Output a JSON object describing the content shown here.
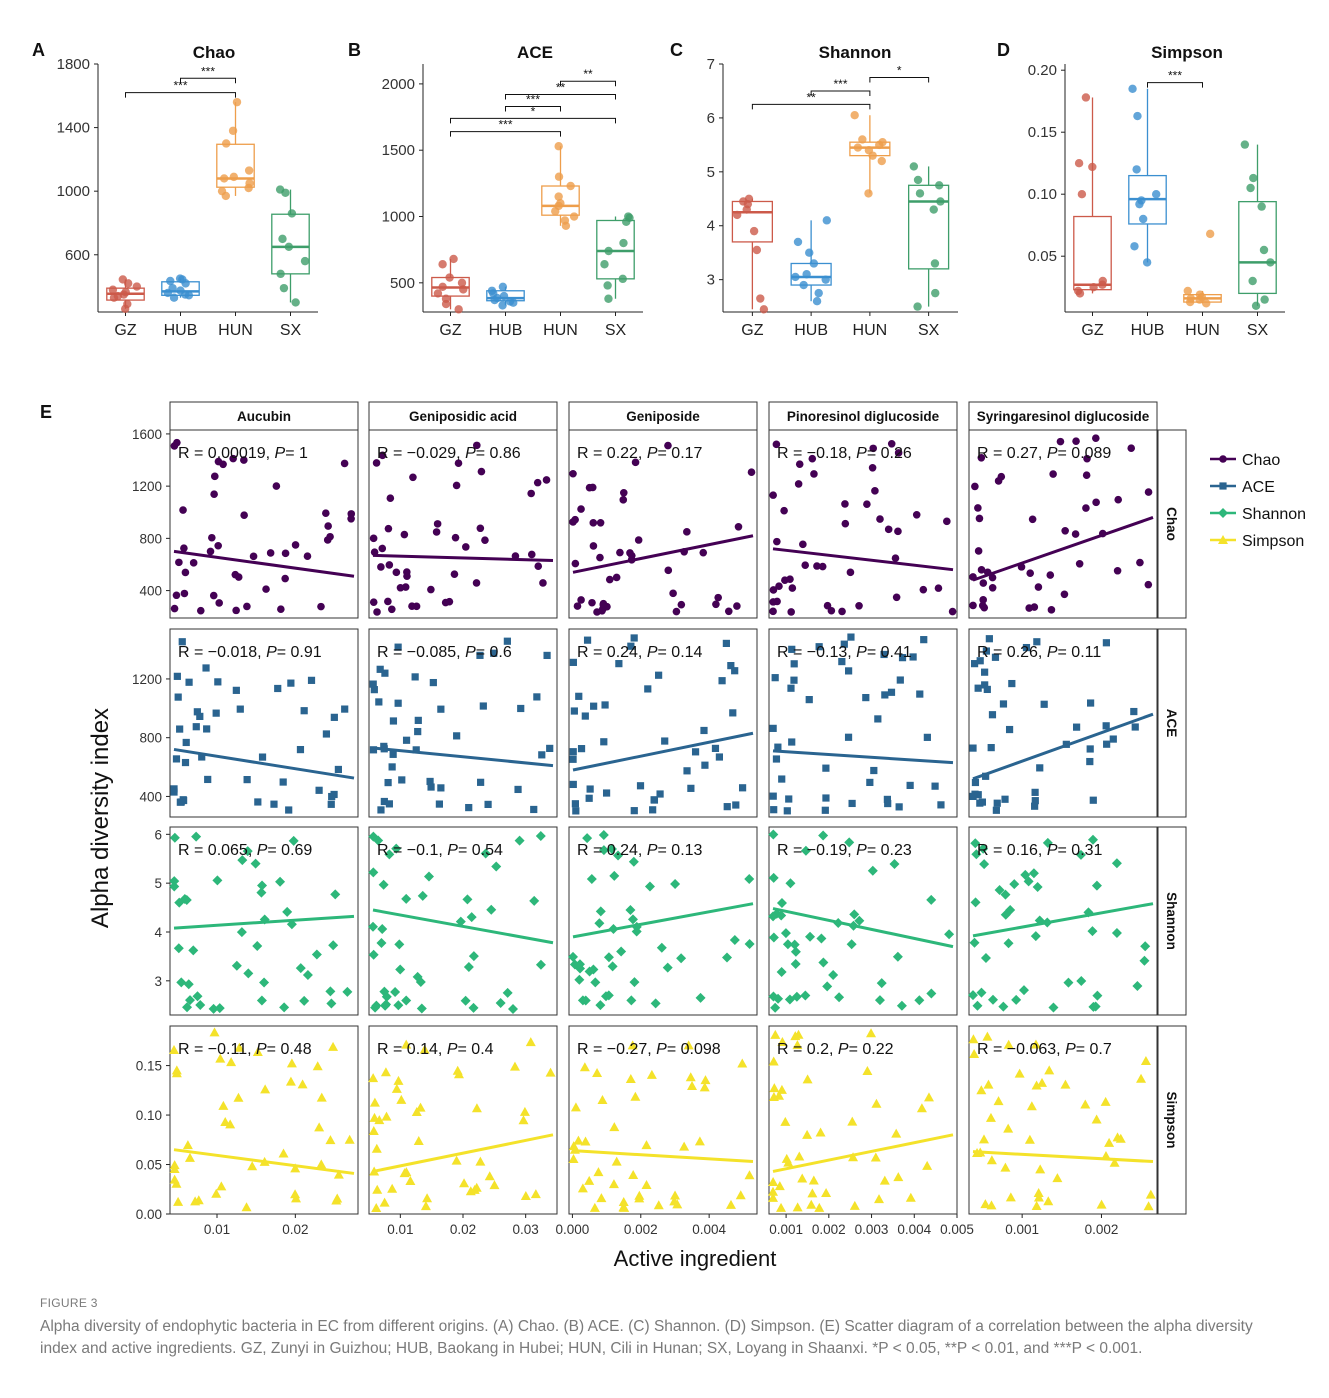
{
  "colors": {
    "GZ": "#CC5A4A",
    "HUB": "#3B8FD0",
    "HUN": "#EE9E4B",
    "SX": "#3E9E6A",
    "Chao": "#440154",
    "ACE": "#2A6490",
    "Shannon": "#2DB77A",
    "Simpson": "#F4E22A",
    "axis": "#222222",
    "caption": "#7a7a7a"
  },
  "chart_data": [
    {
      "panel": "A",
      "type": "box",
      "title": "Chao",
      "categories": [
        "GZ",
        "HUB",
        "HUN",
        "SX"
      ],
      "ylim": [
        240,
        1800
      ],
      "yticks": [
        600,
        1000,
        1400,
        1800
      ],
      "boxes": [
        {
          "min": 260,
          "q1": 315,
          "median": 355,
          "q3": 390,
          "max": 445
        },
        {
          "min": 330,
          "q1": 345,
          "median": 370,
          "q3": 430,
          "max": 450
        },
        {
          "min": 970,
          "q1": 1025,
          "median": 1080,
          "q3": 1295,
          "max": 1560
        },
        {
          "min": 300,
          "q1": 480,
          "median": 650,
          "q3": 855,
          "max": 1010
        }
      ],
      "points": [
        [
          260,
          290,
          330,
          340,
          350,
          365,
          380,
          400,
          420,
          445
        ],
        [
          330,
          345,
          350,
          360,
          375,
          390,
          420,
          435,
          445,
          450
        ],
        [
          970,
          1000,
          1020,
          1050,
          1080,
          1090,
          1130,
          1300,
          1380,
          1560
        ],
        [
          300,
          390,
          480,
          560,
          650,
          700,
          860,
          990,
          1010
        ]
      ],
      "brackets": [
        {
          "from": "GZ",
          "to": "HUN",
          "y": 1620,
          "label": "***"
        },
        {
          "from": "HUB",
          "to": "HUN",
          "y": 1710,
          "label": "***"
        }
      ]
    },
    {
      "panel": "B",
      "type": "box",
      "title": "ACE",
      "categories": [
        "GZ",
        "HUB",
        "HUN",
        "SX"
      ],
      "ylim": [
        280,
        2150
      ],
      "yticks": [
        500,
        1000,
        1500,
        2000
      ],
      "boxes": [
        {
          "min": 300,
          "q1": 400,
          "median": 465,
          "q3": 540,
          "max": 680
        },
        {
          "min": 330,
          "q1": 365,
          "median": 385,
          "q3": 440,
          "max": 470
        },
        {
          "min": 930,
          "q1": 1010,
          "median": 1080,
          "q3": 1230,
          "max": 1530
        },
        {
          "min": 380,
          "q1": 530,
          "median": 740,
          "q3": 970,
          "max": 1000
        }
      ],
      "points": [
        [
          300,
          340,
          380,
          420,
          450,
          470,
          500,
          540,
          640,
          680
        ],
        [
          330,
          350,
          360,
          370,
          385,
          400,
          420,
          440,
          470
        ],
        [
          930,
          970,
          1000,
          1040,
          1080,
          1100,
          1150,
          1230,
          1300,
          1530
        ],
        [
          380,
          480,
          530,
          640,
          740,
          800,
          960,
          990,
          1000
        ]
      ],
      "brackets": [
        {
          "from": "GZ",
          "to": "HUN",
          "y": 1640,
          "label": "***"
        },
        {
          "from": "GZ",
          "to": "SX",
          "y": 1740,
          "label": "*"
        },
        {
          "from": "HUB",
          "to": "HUN",
          "y": 1830,
          "label": "***"
        },
        {
          "from": "HUB",
          "to": "SX",
          "y": 1920,
          "label": "**"
        },
        {
          "from": "HUN",
          "to": "SX",
          "y": 2020,
          "label": "**"
        }
      ]
    },
    {
      "panel": "C",
      "type": "box",
      "title": "Shannon",
      "categories": [
        "GZ",
        "HUB",
        "HUN",
        "SX"
      ],
      "ylim": [
        2.4,
        7.0
      ],
      "yticks": [
        3,
        4,
        5,
        6,
        7
      ],
      "boxes": [
        {
          "min": 2.45,
          "q1": 3.7,
          "median": 4.25,
          "q3": 4.45,
          "max": 4.5
        },
        {
          "min": 2.6,
          "q1": 2.9,
          "median": 3.05,
          "q3": 3.3,
          "max": 4.1
        },
        {
          "min": 4.6,
          "q1": 5.3,
          "median": 5.45,
          "q3": 5.55,
          "max": 6.05
        },
        {
          "min": 2.5,
          "q1": 3.2,
          "median": 4.45,
          "q3": 4.75,
          "max": 5.1
        }
      ],
      "points": [
        [
          2.45,
          2.65,
          3.55,
          3.9,
          4.2,
          4.3,
          4.4,
          4.45,
          4.5
        ],
        [
          2.6,
          2.75,
          2.9,
          3.0,
          3.05,
          3.1,
          3.3,
          3.5,
          3.7,
          4.1
        ],
        [
          4.6,
          5.2,
          5.3,
          5.4,
          5.45,
          5.5,
          5.55,
          5.6,
          6.05
        ],
        [
          2.5,
          2.75,
          3.3,
          4.3,
          4.45,
          4.6,
          4.75,
          4.85,
          5.1
        ]
      ],
      "brackets": [
        {
          "from": "GZ",
          "to": "HUN",
          "y": 6.25,
          "label": "**"
        },
        {
          "from": "HUB",
          "to": "HUN",
          "y": 6.5,
          "label": "***"
        },
        {
          "from": "HUN",
          "to": "SX",
          "y": 6.75,
          "label": "*"
        }
      ]
    },
    {
      "panel": "D",
      "type": "box",
      "title": "Simpson",
      "categories": [
        "GZ",
        "HUB",
        "HUN",
        "SX"
      ],
      "ylim": [
        0.005,
        0.205
      ],
      "yticks": [
        0.05,
        0.1,
        0.15,
        0.2
      ],
      "boxes": [
        {
          "min": 0.02,
          "q1": 0.023,
          "median": 0.027,
          "q3": 0.082,
          "max": 0.178
        },
        {
          "min": 0.045,
          "q1": 0.076,
          "median": 0.096,
          "q3": 0.115,
          "max": 0.185
        },
        {
          "min": 0.012,
          "q1": 0.013,
          "median": 0.016,
          "q3": 0.019,
          "max": 0.022
        },
        {
          "min": 0.01,
          "q1": 0.02,
          "median": 0.045,
          "q3": 0.094,
          "max": 0.14
        }
      ],
      "points": [
        [
          0.02,
          0.022,
          0.025,
          0.027,
          0.03,
          0.1,
          0.122,
          0.125,
          0.178
        ],
        [
          0.045,
          0.058,
          0.08,
          0.092,
          0.095,
          0.1,
          0.12,
          0.163,
          0.185
        ],
        [
          0.012,
          0.013,
          0.015,
          0.016,
          0.017,
          0.019,
          0.022,
          0.068
        ],
        [
          0.01,
          0.015,
          0.03,
          0.045,
          0.055,
          0.09,
          0.105,
          0.113,
          0.14
        ]
      ],
      "brackets": [
        {
          "from": "HUB",
          "to": "HUN",
          "y": 0.19,
          "label": "***"
        }
      ]
    },
    {
      "panel": "E",
      "type": "scatter",
      "xlabel": "Active ingredient",
      "ylabel": "Alpha diversity index",
      "columns": [
        "Aucubin",
        "Geniposidic acid",
        "Geniposide",
        "Pinoresinol diglucoside",
        "Syringaresinol diglucoside"
      ],
      "rows": [
        "Chao",
        "ACE",
        "Shannon",
        "Simpson"
      ],
      "legend": [
        "Chao",
        "ACE",
        "Shannon",
        "Simpson"
      ],
      "xlim": [
        [
          0.004,
          0.028
        ],
        [
          0.005,
          0.035
        ],
        [
          -0.0001,
          0.0054
        ],
        [
          0.0006,
          0.005
        ],
        [
          0.00033,
          0.0027
        ]
      ],
      "xticks": [
        {
          "values": [
            0.01,
            0.02
          ],
          "labels": [
            "0.01",
            "0.02"
          ]
        },
        {
          "values": [
            0.01,
            0.02,
            0.03
          ],
          "labels": [
            "0.01",
            "0.02",
            "0.03"
          ]
        },
        {
          "values": [
            0.0,
            0.002,
            0.004
          ],
          "labels": [
            "0.000",
            "0.002",
            "0.004"
          ]
        },
        {
          "values": [
            0.001,
            0.002,
            0.003,
            0.004,
            0.005
          ],
          "labels": [
            "0.001",
            "0.002",
            "0.003",
            "0.004",
            "0.005"
          ]
        },
        {
          "values": [
            0.001,
            0.002
          ],
          "labels": [
            "0.001",
            "0.002"
          ]
        }
      ],
      "ylim": [
        [
          190,
          1630
        ],
        [
          260,
          1540
        ],
        [
          2.3,
          6.15
        ],
        [
          0.0,
          0.19
        ]
      ],
      "yticks": [
        {
          "values": [
            400,
            800,
            1200,
            1600
          ],
          "labels": [
            "400",
            "800",
            "1200",
            "1600"
          ]
        },
        {
          "values": [
            400,
            800,
            1200
          ],
          "labels": [
            "400",
            "800",
            "1200"
          ]
        },
        {
          "values": [
            3,
            4,
            5,
            6
          ],
          "labels": [
            "3",
            "4",
            "5",
            "6"
          ]
        },
        {
          "values": [
            0.0,
            0.05,
            0.1,
            0.15
          ],
          "labels": [
            "0.00",
            "0.05",
            "0.10",
            "0.15"
          ]
        }
      ],
      "stats": [
        [
          [
            "R = 0.00019, ",
            "P",
            "= 1"
          ],
          [
            "R = −0.029, ",
            "P",
            "= 0.86"
          ],
          [
            "R = 0.22, ",
            "P",
            "= 0.17"
          ],
          [
            "R = −0.18, ",
            "P",
            "= 0.26"
          ],
          [
            "R = 0.27, ",
            "P",
            "= 0.089"
          ]
        ],
        [
          [
            "R = −0.018, ",
            "P",
            "= 0.91"
          ],
          [
            "R = −0.085, ",
            "P",
            "= 0.6"
          ],
          [
            "R = 0.24, ",
            "P",
            "= 0.14"
          ],
          [
            "R = −0.13, ",
            "P",
            "= 0.41"
          ],
          [
            "R = 0.26, ",
            "P",
            "= 0.11"
          ]
        ],
        [
          [
            "R = 0.065, ",
            "P",
            "= 0.69"
          ],
          [
            "R = −0.1, ",
            "P",
            "= 0.54"
          ],
          [
            "R = 0.24, ",
            "P",
            "= 0.13"
          ],
          [
            "R = −0.19, ",
            "P",
            "= 0.23"
          ],
          [
            "R = 0.16, ",
            "P",
            "= 0.31"
          ]
        ],
        [
          [
            "R = −0.11, ",
            "P",
            "= 0.48"
          ],
          [
            "R = 0.14, ",
            "P",
            "= 0.4"
          ],
          [
            "R = −0.27, ",
            "P",
            "= 0.098"
          ],
          [
            "R = 0.2, ",
            "P",
            "= 0.22"
          ],
          [
            "R = −0.063, ",
            "P",
            "= 0.7"
          ]
        ]
      ],
      "regression": [
        [
          [
            700,
            510
          ],
          [
            670,
            630
          ],
          [
            540,
            820
          ],
          [
            720,
            560
          ],
          [
            480,
            960
          ]
        ],
        [
          [
            720,
            525
          ],
          [
            730,
            610
          ],
          [
            580,
            830
          ],
          [
            710,
            630
          ],
          [
            520,
            960
          ]
        ],
        [
          [
            4.08,
            4.32
          ],
          [
            4.45,
            3.78
          ],
          [
            3.9,
            4.58
          ],
          [
            4.48,
            3.7
          ],
          [
            3.92,
            4.58
          ]
        ],
        [
          [
            0.065,
            0.041
          ],
          [
            0.043,
            0.08
          ],
          [
            0.064,
            0.053
          ],
          [
            0.043,
            0.08
          ],
          [
            0.063,
            0.053
          ]
        ]
      ]
    }
  ],
  "caption": {
    "label": "FIGURE 3",
    "text": "Alpha diversity of endophytic bacteria in EC from different origins. (A) Chao. (B) ACE. (C) Shannon. (D) Simpson. (E) Scatter diagram of a correlation between the alpha diversity index and active ingredients. GZ, Zunyi in Guizhou; HUB, Baokang in Hubei; HUN, Cili in Hunan; SX, Loyang in Shaanxi. *P < 0.05, **P < 0.01, and ***P < 0.001."
  }
}
